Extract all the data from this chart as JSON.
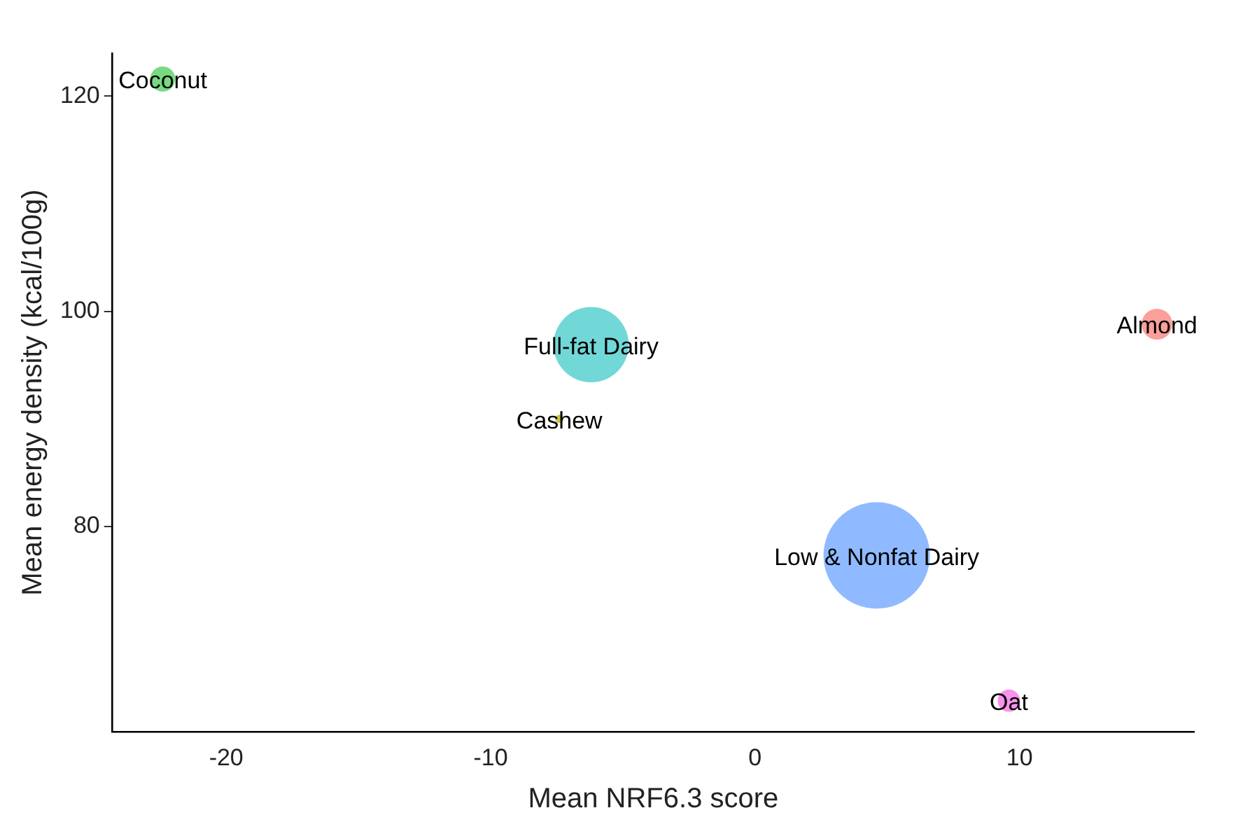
{
  "chart_data": {
    "type": "bubble",
    "xlabel": "Mean NRF6.3 score",
    "ylabel": "Mean energy density (kcal/100g)",
    "xlim": [
      -24.3,
      16.6
    ],
    "xticks": [
      -20,
      -10,
      0,
      10
    ],
    "ylim": [
      60.9,
      124
    ],
    "yticks": [
      80,
      100,
      120
    ],
    "series": [
      {
        "name": "Coconut",
        "color": "#3ec94e",
        "x": [
          -22.4
        ],
        "values": [
          121.6
        ],
        "sizes": [
          0.056
        ]
      },
      {
        "name": "Full-fat Dairy",
        "color": "#36c6c6",
        "x": [
          -6.2
        ],
        "values": [
          96.9
        ],
        "sizes": [
          0.5
        ]
      },
      {
        "name": "Cashew",
        "color": "#b5a600",
        "x": [
          -7.4
        ],
        "values": [
          90.0
        ],
        "sizes": [
          0.006
        ]
      },
      {
        "name": "Almond",
        "color": "#f8766d",
        "x": [
          15.2
        ],
        "values": [
          98.8
        ],
        "sizes": [
          0.084
        ]
      },
      {
        "name": "Low & Nonfat Dairy",
        "color": "#619cff",
        "x": [
          4.6
        ],
        "values": [
          77.3
        ],
        "sizes": [
          1
        ]
      },
      {
        "name": "Oat",
        "color": "#f564e3",
        "x": [
          9.6
        ],
        "values": [
          63.8
        ],
        "sizes": [
          0.044
        ]
      }
    ]
  }
}
